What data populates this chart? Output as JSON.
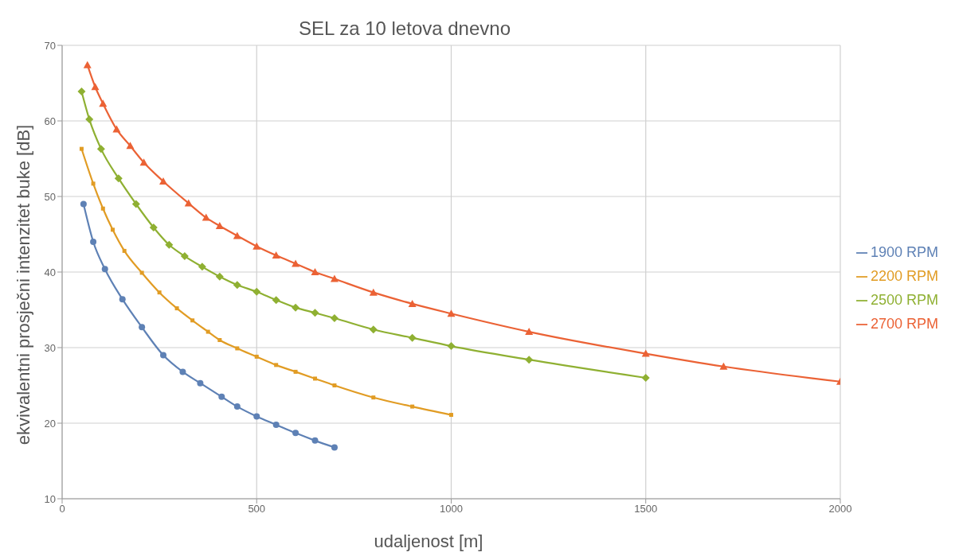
{
  "chart_data": {
    "type": "line",
    "title": "SEL za 10 letova dnevno",
    "xlabel": "udaljenost [m]",
    "ylabel": "ekvivalentni prosječni intenzitet buke [dB]",
    "xlim": [
      0,
      2000
    ],
    "xticks": [
      0,
      500,
      1000,
      1500,
      2000
    ],
    "ylim": [
      10,
      70
    ],
    "yticks": [
      10,
      20,
      30,
      40,
      50,
      60,
      70
    ],
    "grid": true,
    "legend": "right",
    "series": [
      {
        "name": "1900 RPM",
        "color": "#5e81b5",
        "marker": "circle",
        "x": [
          55,
          80,
          110,
          155,
          205,
          260,
          310,
          355,
          410,
          450,
          500,
          550,
          600,
          650,
          700
        ],
        "values": [
          49.0,
          44.0,
          40.4,
          36.4,
          32.7,
          29.0,
          26.8,
          25.3,
          23.5,
          22.2,
          20.9,
          19.8,
          18.7,
          17.7,
          16.8
        ]
      },
      {
        "name": "2200 RPM",
        "color": "#e19c24",
        "marker": "square",
        "x": [
          50,
          80,
          105,
          130,
          160,
          205,
          250,
          295,
          335,
          375,
          405,
          450,
          500,
          550,
          600,
          650,
          700,
          800,
          900,
          1000
        ],
        "values": [
          56.3,
          51.7,
          48.4,
          45.6,
          42.8,
          39.9,
          37.3,
          35.2,
          33.6,
          32.1,
          31.0,
          29.9,
          28.8,
          27.7,
          26.8,
          25.9,
          25.0,
          23.4,
          22.2,
          21.1
        ]
      },
      {
        "name": "2500 RPM",
        "color": "#8fb032",
        "marker": "diamond",
        "x": [
          50,
          70,
          100,
          145,
          190,
          235,
          275,
          315,
          360,
          405,
          450,
          500,
          550,
          600,
          650,
          700,
          800,
          900,
          1000,
          1200,
          1500
        ],
        "values": [
          63.9,
          60.2,
          56.3,
          52.4,
          49.0,
          45.9,
          43.6,
          42.1,
          40.7,
          39.4,
          38.3,
          37.4,
          36.3,
          35.3,
          34.6,
          33.9,
          32.4,
          31.3,
          30.2,
          28.4,
          26.0
        ]
      },
      {
        "name": "2700 RPM",
        "color": "#eb6235",
        "marker": "triangle",
        "x": [
          65,
          85,
          105,
          140,
          175,
          210,
          260,
          325,
          370,
          405,
          450,
          500,
          550,
          600,
          650,
          700,
          800,
          900,
          1000,
          1200,
          1500,
          1700,
          2000
        ],
        "values": [
          67.4,
          64.5,
          62.3,
          58.9,
          56.7,
          54.5,
          52.0,
          49.1,
          47.2,
          46.1,
          44.8,
          43.4,
          42.2,
          41.1,
          40.0,
          39.1,
          37.3,
          35.8,
          34.5,
          32.1,
          29.2,
          27.5,
          25.5
        ]
      }
    ]
  }
}
